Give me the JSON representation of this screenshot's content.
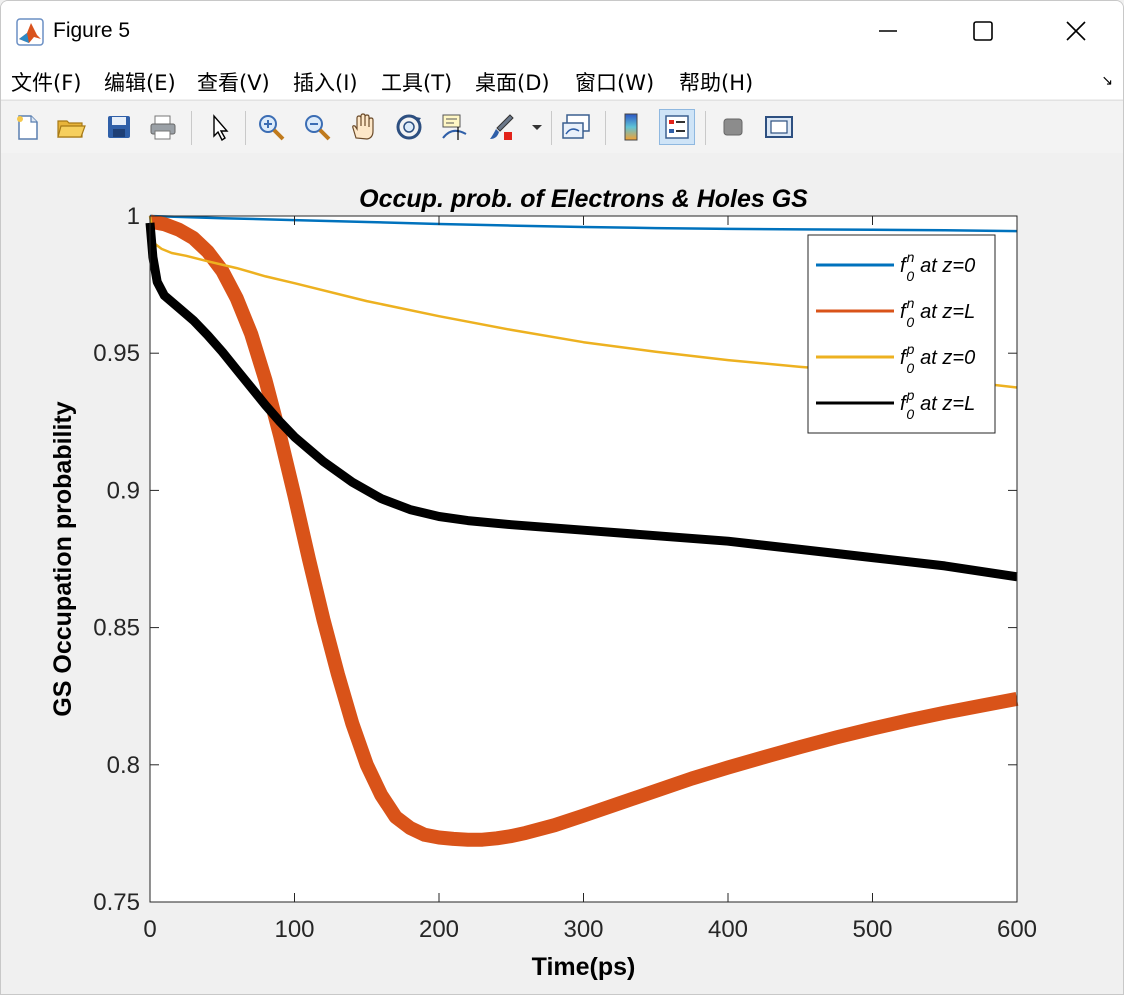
{
  "window": {
    "title": "Figure 5"
  },
  "menu": [
    "文件(F)",
    "编辑(E)",
    "查看(V)",
    "插入(I)",
    "工具(T)",
    "桌面(D)",
    "窗口(W)",
    "帮助(H)"
  ],
  "toolbar": [
    "new-figure-icon",
    "open-file-icon",
    "save-icon",
    "print-icon",
    "select-arrow-icon",
    "zoom-in-icon",
    "zoom-out-icon",
    "pan-hand-icon",
    "rotate-3d-icon",
    "data-cursor-icon",
    "brush-icon",
    "link-plot-icon",
    "colorbar-icon",
    "legend-icon",
    "hide-tools-icon",
    "show-tools-icon"
  ],
  "chart_data": {
    "type": "line",
    "title": "Occup. prob. of Electrons & Holes GS",
    "xlabel": "Time(ps)",
    "ylabel": "GS Occupation probability",
    "xlim": [
      0,
      600
    ],
    "ylim": [
      0.75,
      1
    ],
    "xticks": [
      "0",
      "100",
      "200",
      "300",
      "400",
      "500",
      "600"
    ],
    "yticks": [
      "0.75",
      "0.8",
      "0.85",
      "0.9",
      "0.95",
      "1"
    ],
    "grid": false,
    "legend_position": "top-right",
    "series": [
      {
        "color": "#0072BD",
        "sup": "n",
        "suffix": "at z=0",
        "width": 2.5,
        "x": [
          0,
          50,
          100,
          150,
          200,
          250,
          300,
          350,
          400,
          450,
          500,
          550,
          600
        ],
        "y": [
          1.0,
          0.9992,
          0.9985,
          0.9978,
          0.9971,
          0.9965,
          0.996,
          0.9956,
          0.9953,
          0.9951,
          0.995,
          0.9948,
          0.9945
        ]
      },
      {
        "color": "#D95319",
        "sup": "n",
        "suffix": "at z=L",
        "width": 14,
        "x": [
          0,
          10,
          20,
          30,
          40,
          50,
          60,
          70,
          80,
          90,
          100,
          110,
          120,
          130,
          140,
          150,
          160,
          170,
          180,
          190,
          200,
          210,
          220,
          230,
          240,
          250,
          260,
          280,
          300,
          325,
          350,
          375,
          400,
          425,
          450,
          475,
          500,
          525,
          550,
          575,
          600
        ],
        "y": [
          0.998,
          0.997,
          0.995,
          0.992,
          0.987,
          0.98,
          0.97,
          0.957,
          0.94,
          0.92,
          0.898,
          0.875,
          0.853,
          0.833,
          0.815,
          0.8,
          0.789,
          0.781,
          0.777,
          0.7745,
          0.7735,
          0.773,
          0.7727,
          0.7727,
          0.7732,
          0.774,
          0.7752,
          0.778,
          0.7815,
          0.786,
          0.7905,
          0.795,
          0.799,
          0.8028,
          0.8065,
          0.81,
          0.8132,
          0.8162,
          0.819,
          0.8215,
          0.824
        ]
      },
      {
        "color": "#EDB120",
        "sup": "p",
        "suffix": "at z=0",
        "width": 2.5,
        "x": [
          0,
          3,
          8,
          15,
          25,
          40,
          60,
          80,
          100,
          150,
          200,
          250,
          300,
          350,
          400,
          450,
          500,
          550,
          600
        ],
        "y": [
          1.0,
          0.99,
          0.988,
          0.9865,
          0.9855,
          0.9835,
          0.981,
          0.978,
          0.9755,
          0.969,
          0.9635,
          0.9585,
          0.954,
          0.9505,
          0.9475,
          0.945,
          0.943,
          0.9405,
          0.9375
        ]
      },
      {
        "color": "#000000",
        "sup": "p",
        "suffix": "at z=L",
        "width": 9,
        "x": [
          0,
          2,
          5,
          10,
          20,
          30,
          40,
          50,
          60,
          70,
          80,
          90,
          100,
          120,
          140,
          160,
          180,
          200,
          220,
          250,
          300,
          350,
          400,
          450,
          500,
          550,
          600
        ],
        "y": [
          0.9975,
          0.985,
          0.976,
          0.971,
          0.9665,
          0.962,
          0.9565,
          0.9505,
          0.944,
          0.9375,
          0.931,
          0.925,
          0.9195,
          0.9105,
          0.903,
          0.897,
          0.893,
          0.8905,
          0.889,
          0.8875,
          0.8855,
          0.8835,
          0.8815,
          0.8785,
          0.8755,
          0.8725,
          0.8685
        ]
      }
    ]
  }
}
